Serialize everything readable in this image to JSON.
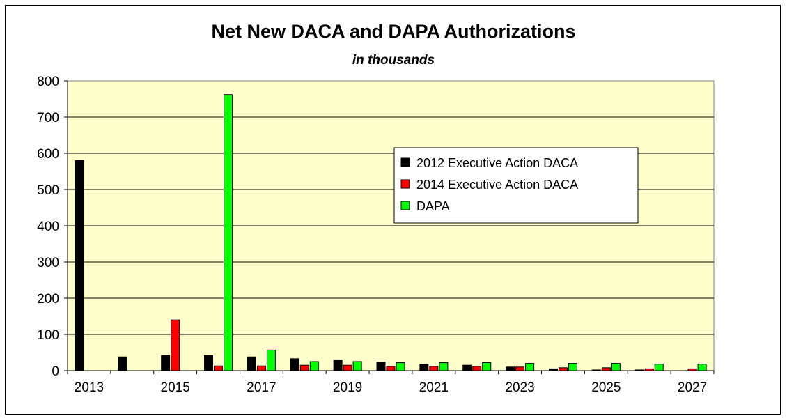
{
  "chart_data": {
    "type": "bar",
    "title": "Net New DACA and DAPA Authorizations",
    "subtitle": "in thousands",
    "categories": [
      "2013",
      "2014",
      "2015",
      "2016",
      "2017",
      "2018",
      "2019",
      "2020",
      "2021",
      "2022",
      "2023",
      "2024",
      "2025",
      "2026",
      "2027"
    ],
    "x_tick_labels": [
      "2013",
      "2015",
      "2017",
      "2019",
      "2021",
      "2023",
      "2025",
      "2027"
    ],
    "y_tick_labels": [
      "0",
      "100",
      "200",
      "300",
      "400",
      "500",
      "600",
      "700",
      "800"
    ],
    "ylim": [
      0,
      800
    ],
    "grid": true,
    "legend_position": "upper-right-center",
    "plot_background": "#ffffcc",
    "series": [
      {
        "name": "2012 Executive Action DACA",
        "color": "#000000",
        "values": [
          580,
          38,
          42,
          42,
          38,
          33,
          28,
          23,
          18,
          15,
          10,
          5,
          2,
          2,
          0
        ]
      },
      {
        "name": "2014 Executive Action DACA",
        "color": "#ff0000",
        "values": [
          0,
          0,
          140,
          13,
          13,
          15,
          15,
          12,
          12,
          12,
          10,
          8,
          8,
          5,
          5
        ]
      },
      {
        "name": "DAPA",
        "color": "#00ff00",
        "values": [
          0,
          0,
          0,
          762,
          57,
          25,
          25,
          22,
          22,
          22,
          20,
          20,
          20,
          18,
          18
        ]
      }
    ]
  }
}
